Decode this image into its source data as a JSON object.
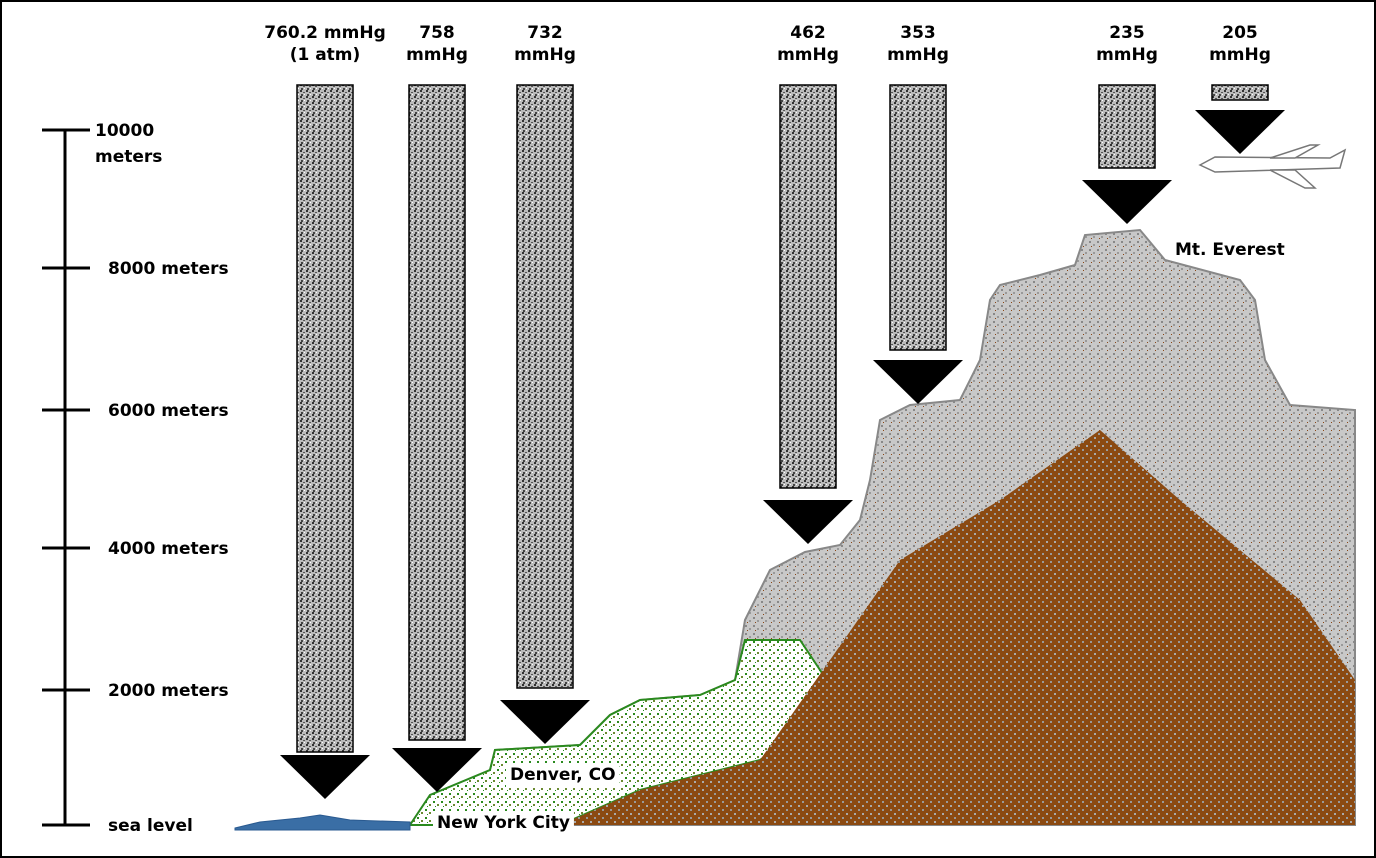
{
  "columns": [
    {
      "lines": [
        "760.2 mmHg",
        "(1 atm)"
      ]
    },
    {
      "lines": [
        "758",
        "mmHg"
      ]
    },
    {
      "lines": [
        "732",
        "mmHg"
      ]
    },
    {
      "lines": [
        "462",
        "mmHg"
      ]
    },
    {
      "lines": [
        "353",
        "mmHg"
      ]
    },
    {
      "lines": [
        "235",
        "mmHg"
      ]
    },
    {
      "lines": [
        "205",
        "mmHg"
      ]
    }
  ],
  "scale": [
    {
      "lines": [
        "10000",
        "meters"
      ]
    },
    {
      "lines": [
        "8000 meters"
      ]
    },
    {
      "lines": [
        "6000 meters"
      ]
    },
    {
      "lines": [
        "4000 meters"
      ]
    },
    {
      "lines": [
        "2000 meters"
      ]
    },
    {
      "lines": [
        "sea level"
      ]
    }
  ],
  "places": [
    "Mt. Everest",
    "Denver, CO",
    "New York City"
  ]
}
